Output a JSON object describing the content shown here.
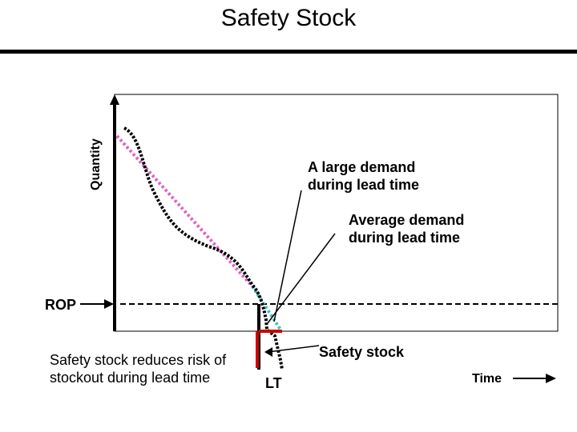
{
  "title": "Safety Stock",
  "axis": {
    "y_label": "Quantity",
    "x_label": "Time"
  },
  "labels": {
    "rop": "ROP",
    "lt": "LT",
    "large_demand": "A large demand\nduring lead time",
    "average_demand": "Average demand\nduring lead time",
    "safety_stock": "Safety stock",
    "risk_note": "Safety stock reduces risk of\nstockout during lead time"
  },
  "colors": {
    "frame": "#000000",
    "inventory_line": "#000000",
    "average_line": "#e060c0",
    "average_tail": "#40c0c0",
    "safety_stock_marker": "#cc0000"
  }
}
